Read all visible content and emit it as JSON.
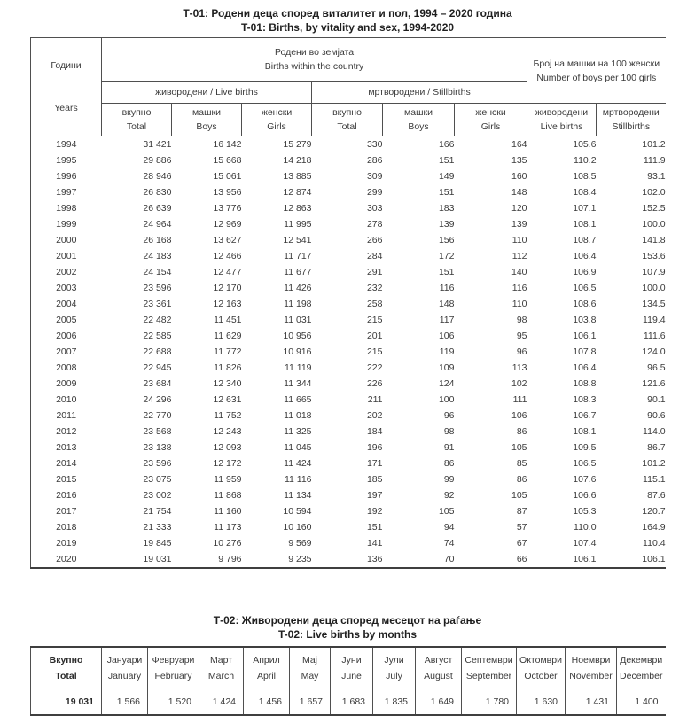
{
  "t01": {
    "title_mk": "Т-01: Родени деца според виталитет и пол, 1994 – 2020 година",
    "title_en": "T-01: Births, by vitality and sex, 1994-2020",
    "header": {
      "years_mk": "Години",
      "years_en": "Years",
      "within_country_mk": "Родени во земјата",
      "within_country_en": "Births within the country",
      "live_births_group": "живородени / Live births",
      "stillbirths_group": "мртвородени / Stillbirths",
      "total_mk": "вкупно",
      "total_en": "Total",
      "boys_mk": "машки",
      "boys_en": "Boys",
      "girls_mk": "женски",
      "girls_en": "Girls",
      "ratio_mk": "Број на машки на 100 женски",
      "ratio_en": "Number of boys per 100 girls",
      "ratio_live_mk": "живородени",
      "ratio_live_en": "Live births",
      "ratio_still_mk": "мртвородени",
      "ratio_still_en": "Stillbirths"
    },
    "rows": [
      {
        "year": "1994",
        "lb_total": "31 421",
        "lb_boys": "16 142",
        "lb_girls": "15 279",
        "sb_total": "330",
        "sb_boys": "166",
        "sb_girls": "164",
        "ratio_live": "105.6",
        "ratio_still": "101.2"
      },
      {
        "year": "1995",
        "lb_total": "29 886",
        "lb_boys": "15 668",
        "lb_girls": "14 218",
        "sb_total": "286",
        "sb_boys": "151",
        "sb_girls": "135",
        "ratio_live": "110.2",
        "ratio_still": "111.9"
      },
      {
        "year": "1996",
        "lb_total": "28 946",
        "lb_boys": "15 061",
        "lb_girls": "13 885",
        "sb_total": "309",
        "sb_boys": "149",
        "sb_girls": "160",
        "ratio_live": "108.5",
        "ratio_still": "93.1"
      },
      {
        "year": "1997",
        "lb_total": "26 830",
        "lb_boys": "13 956",
        "lb_girls": "12 874",
        "sb_total": "299",
        "sb_boys": "151",
        "sb_girls": "148",
        "ratio_live": "108.4",
        "ratio_still": "102.0"
      },
      {
        "year": "1998",
        "lb_total": "26 639",
        "lb_boys": "13 776",
        "lb_girls": "12 863",
        "sb_total": "303",
        "sb_boys": "183",
        "sb_girls": "120",
        "ratio_live": "107.1",
        "ratio_still": "152.5"
      },
      {
        "year": "1999",
        "lb_total": "24 964",
        "lb_boys": "12 969",
        "lb_girls": "11 995",
        "sb_total": "278",
        "sb_boys": "139",
        "sb_girls": "139",
        "ratio_live": "108.1",
        "ratio_still": "100.0"
      },
      {
        "year": "2000",
        "lb_total": "26 168",
        "lb_boys": "13 627",
        "lb_girls": "12 541",
        "sb_total": "266",
        "sb_boys": "156",
        "sb_girls": "110",
        "ratio_live": "108.7",
        "ratio_still": "141.8"
      },
      {
        "year": "2001",
        "lb_total": "24 183",
        "lb_boys": "12 466",
        "lb_girls": "11 717",
        "sb_total": "284",
        "sb_boys": "172",
        "sb_girls": "112",
        "ratio_live": "106.4",
        "ratio_still": "153.6"
      },
      {
        "year": "2002",
        "lb_total": "24 154",
        "lb_boys": "12 477",
        "lb_girls": "11 677",
        "sb_total": "291",
        "sb_boys": "151",
        "sb_girls": "140",
        "ratio_live": "106.9",
        "ratio_still": "107.9"
      },
      {
        "year": "2003",
        "lb_total": "23 596",
        "lb_boys": "12 170",
        "lb_girls": "11 426",
        "sb_total": "232",
        "sb_boys": "116",
        "sb_girls": "116",
        "ratio_live": "106.5",
        "ratio_still": "100.0"
      },
      {
        "year": "2004",
        "lb_total": "23 361",
        "lb_boys": "12 163",
        "lb_girls": "11 198",
        "sb_total": "258",
        "sb_boys": "148",
        "sb_girls": "110",
        "ratio_live": "108.6",
        "ratio_still": "134.5"
      },
      {
        "year": "2005",
        "lb_total": "22 482",
        "lb_boys": "11 451",
        "lb_girls": "11 031",
        "sb_total": "215",
        "sb_boys": "117",
        "sb_girls": "98",
        "ratio_live": "103.8",
        "ratio_still": "119.4"
      },
      {
        "year": "2006",
        "lb_total": "22 585",
        "lb_boys": "11 629",
        "lb_girls": "10 956",
        "sb_total": "201",
        "sb_boys": "106",
        "sb_girls": "95",
        "ratio_live": "106.1",
        "ratio_still": "111.6"
      },
      {
        "year": "2007",
        "lb_total": "22 688",
        "lb_boys": "11 772",
        "lb_girls": "10 916",
        "sb_total": "215",
        "sb_boys": "119",
        "sb_girls": "96",
        "ratio_live": "107.8",
        "ratio_still": "124.0"
      },
      {
        "year": "2008",
        "lb_total": "22 945",
        "lb_boys": "11 826",
        "lb_girls": "11 119",
        "sb_total": "222",
        "sb_boys": "109",
        "sb_girls": "113",
        "ratio_live": "106.4",
        "ratio_still": "96.5"
      },
      {
        "year": "2009",
        "lb_total": "23 684",
        "lb_boys": "12 340",
        "lb_girls": "11 344",
        "sb_total": "226",
        "sb_boys": "124",
        "sb_girls": "102",
        "ratio_live": "108.8",
        "ratio_still": "121.6"
      },
      {
        "year": "2010",
        "lb_total": "24 296",
        "lb_boys": "12 631",
        "lb_girls": "11 665",
        "sb_total": "211",
        "sb_boys": "100",
        "sb_girls": "111",
        "ratio_live": "108.3",
        "ratio_still": "90.1"
      },
      {
        "year": "2011",
        "lb_total": "22 770",
        "lb_boys": "11 752",
        "lb_girls": "11 018",
        "sb_total": "202",
        "sb_boys": "96",
        "sb_girls": "106",
        "ratio_live": "106.7",
        "ratio_still": "90.6"
      },
      {
        "year": "2012",
        "lb_total": "23 568",
        "lb_boys": "12 243",
        "lb_girls": "11 325",
        "sb_total": "184",
        "sb_boys": "98",
        "sb_girls": "86",
        "ratio_live": "108.1",
        "ratio_still": "114.0"
      },
      {
        "year": "2013",
        "lb_total": "23 138",
        "lb_boys": "12 093",
        "lb_girls": "11 045",
        "sb_total": "196",
        "sb_boys": "91",
        "sb_girls": "105",
        "ratio_live": "109.5",
        "ratio_still": "86.7"
      },
      {
        "year": "2014",
        "lb_total": "23 596",
        "lb_boys": "12 172",
        "lb_girls": "11 424",
        "sb_total": "171",
        "sb_boys": "86",
        "sb_girls": "85",
        "ratio_live": "106.5",
        "ratio_still": "101.2"
      },
      {
        "year": "2015",
        "lb_total": "23 075",
        "lb_boys": "11 959",
        "lb_girls": "11 116",
        "sb_total": "185",
        "sb_boys": "99",
        "sb_girls": "86",
        "ratio_live": "107.6",
        "ratio_still": "115.1"
      },
      {
        "year": "2016",
        "lb_total": "23 002",
        "lb_boys": "11 868",
        "lb_girls": "11 134",
        "sb_total": "197",
        "sb_boys": "92",
        "sb_girls": "105",
        "ratio_live": "106.6",
        "ratio_still": "87.6"
      },
      {
        "year": "2017",
        "lb_total": "21 754",
        "lb_boys": "11 160",
        "lb_girls": "10 594",
        "sb_total": "192",
        "sb_boys": "105",
        "sb_girls": "87",
        "ratio_live": "105.3",
        "ratio_still": "120.7"
      },
      {
        "year": "2018",
        "lb_total": "21 333",
        "lb_boys": "11 173",
        "lb_girls": "10 160",
        "sb_total": "151",
        "sb_boys": "94",
        "sb_girls": "57",
        "ratio_live": "110.0",
        "ratio_still": "164.9"
      },
      {
        "year": "2019",
        "lb_total": "19 845",
        "lb_boys": "10 276",
        "lb_girls": "9 569",
        "sb_total": "141",
        "sb_boys": "74",
        "sb_girls": "67",
        "ratio_live": "107.4",
        "ratio_still": "110.4"
      },
      {
        "year": "2020",
        "lb_total": "19 031",
        "lb_boys": "9 796",
        "lb_girls": "9 235",
        "sb_total": "136",
        "sb_boys": "70",
        "sb_girls": "66",
        "ratio_live": "106.1",
        "ratio_still": "106.1"
      }
    ]
  },
  "t02": {
    "title_mk": "Т-02: Живородени деца според месецот на раѓање",
    "title_en": "T-02: Live births by months",
    "total_label_mk": "Вкупно",
    "total_label_en": "Total",
    "total_value": "19 031",
    "months": [
      {
        "mk": "Јануари",
        "en": "January",
        "value": "1 566"
      },
      {
        "mk": "Февруари",
        "en": "February",
        "value": "1 520"
      },
      {
        "mk": "Март",
        "en": "March",
        "value": "1 424"
      },
      {
        "mk": "Април",
        "en": "April",
        "value": "1 456"
      },
      {
        "mk": "Мај",
        "en": "May",
        "value": "1 657"
      },
      {
        "mk": "Јуни",
        "en": "June",
        "value": "1 683"
      },
      {
        "mk": "Јули",
        "en": "July",
        "value": "1 835"
      },
      {
        "mk": "Август",
        "en": "August",
        "value": "1 649"
      },
      {
        "mk": "Септември",
        "en": "September",
        "value": "1 780"
      },
      {
        "mk": "Октомври",
        "en": "October",
        "value": "1 630"
      },
      {
        "mk": "Ноември",
        "en": "November",
        "value": "1 431"
      },
      {
        "mk": "Декември",
        "en": "December",
        "value": "1 400"
      }
    ]
  }
}
